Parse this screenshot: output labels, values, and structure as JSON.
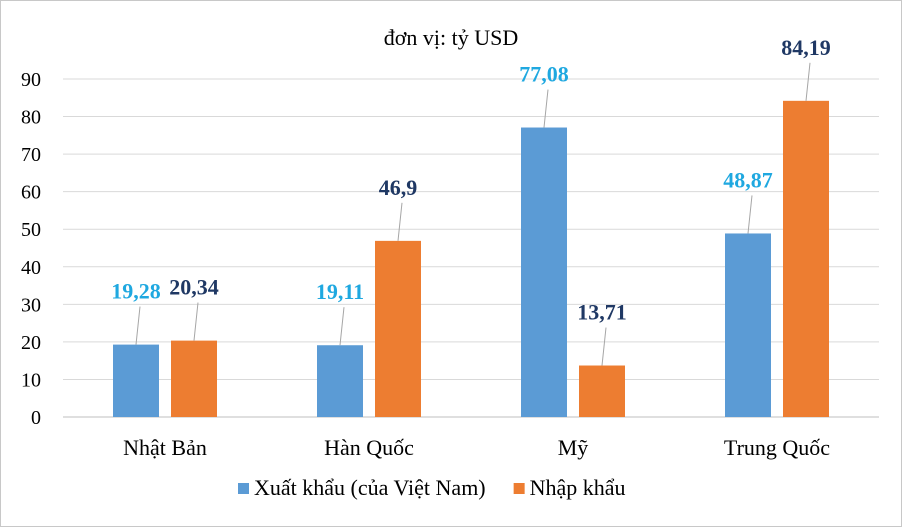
{
  "chart_data": {
    "type": "bar",
    "title": "đơn vị: tỷ USD",
    "categories": [
      "Nhật Bản",
      "Hàn Quốc",
      "Mỹ",
      "Trung Quốc"
    ],
    "series": [
      {
        "name": "Xuất khẩu (của Việt Nam)",
        "color": "#5b9bd5",
        "label_color": "#1fa8e0",
        "values": [
          19.28,
          19.11,
          77.08,
          48.87
        ],
        "labels": [
          "19,28",
          "19,11",
          "77,08",
          "48,87"
        ]
      },
      {
        "name": "Nhập khẩu",
        "color": "#ed7d31",
        "label_color": "#1f3864",
        "values": [
          20.34,
          46.9,
          13.71,
          84.19
        ],
        "labels": [
          "20,34",
          "46,9",
          "13,71",
          "84,19"
        ]
      }
    ],
    "ylim": [
      0,
      90
    ],
    "yticks": [
      "0",
      "10",
      "20",
      "30",
      "40",
      "50",
      "60",
      "70",
      "80",
      "90"
    ],
    "grid": true,
    "legend_position": "bottom"
  }
}
